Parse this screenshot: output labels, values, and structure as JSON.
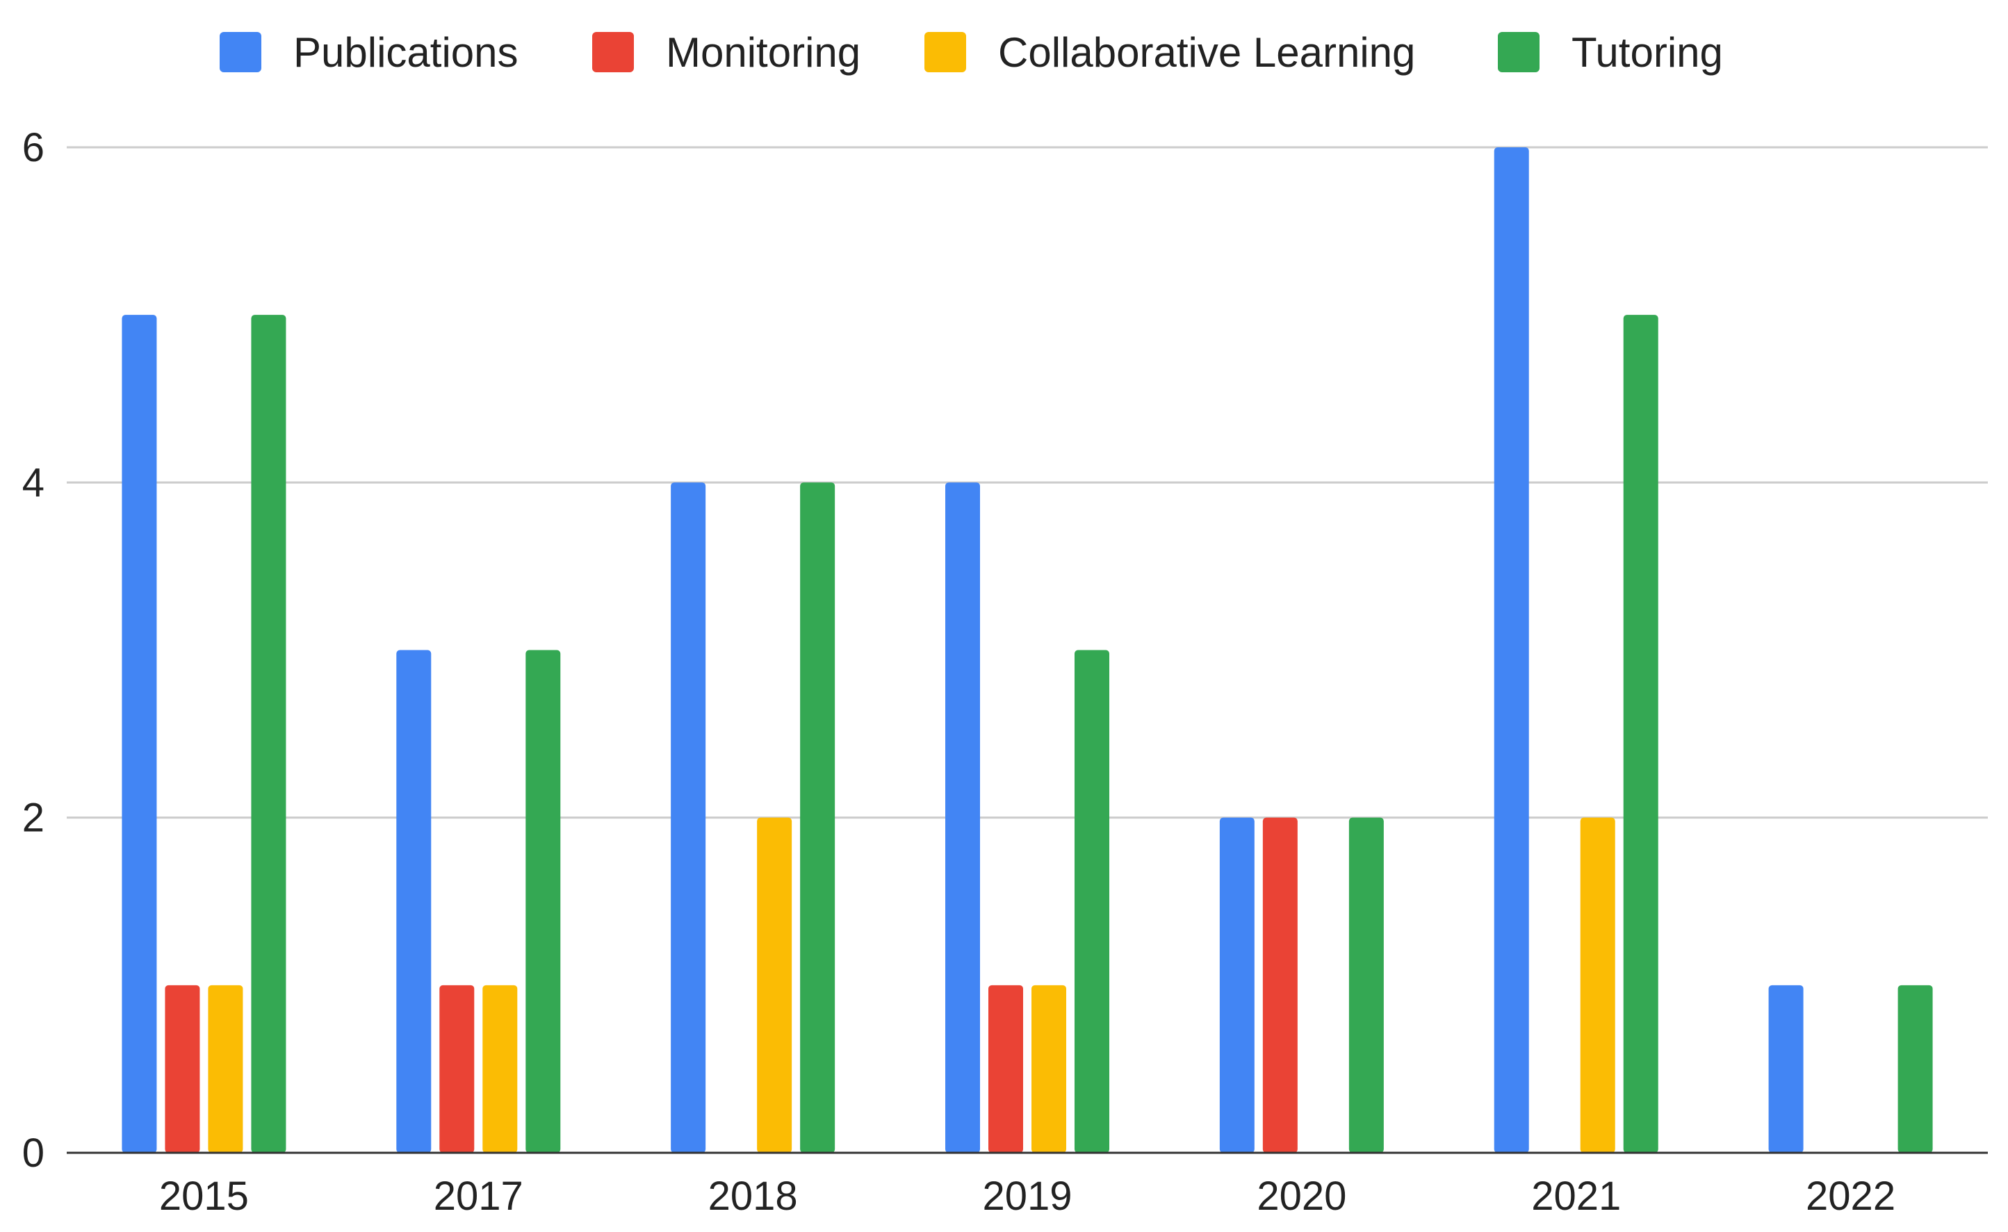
{
  "chart_data": {
    "type": "bar",
    "title": "",
    "xlabel": "",
    "ylabel": "",
    "categories": [
      "2015",
      "2017",
      "2018",
      "2019",
      "2020",
      "2021",
      "2022"
    ],
    "series": [
      {
        "name": "Publications",
        "color": "#4285F4",
        "values": [
          5,
          3,
          4,
          4,
          2,
          6,
          1
        ]
      },
      {
        "name": "Monitoring",
        "color": "#EA4335",
        "values": [
          1,
          1,
          0,
          1,
          2,
          0,
          0
        ]
      },
      {
        "name": "Collaborative Learning",
        "color": "#FBBC04",
        "values": [
          1,
          1,
          2,
          1,
          0,
          2,
          0
        ]
      },
      {
        "name": "Tutoring",
        "color": "#34A853",
        "values": [
          5,
          3,
          4,
          3,
          2,
          5,
          1
        ]
      }
    ],
    "ylim": [
      0,
      6
    ],
    "yticks": [
      "0",
      "2",
      "4",
      "6"
    ],
    "grid": true,
    "legend_position": "top",
    "colors": {
      "grid": "#cccccc",
      "axis": "#333333"
    }
  }
}
